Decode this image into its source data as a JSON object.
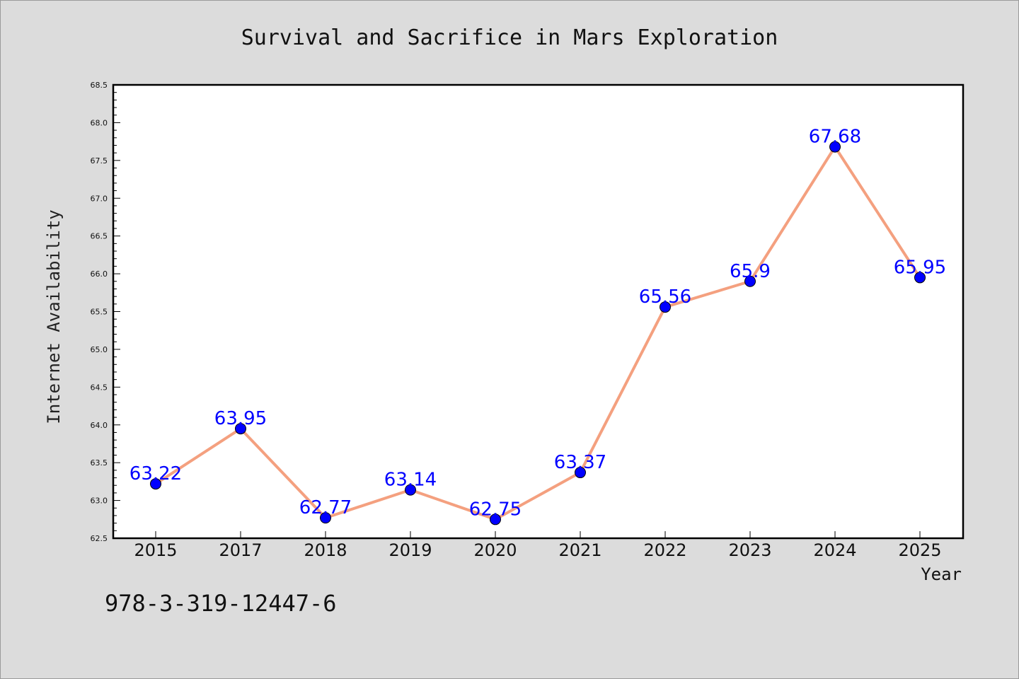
{
  "colors": {
    "background": "#dcdcdc",
    "plot_background": "#ffffff",
    "line": "#f4a07f",
    "marker": "#0000ff",
    "data_label": "#0000ff"
  },
  "footer": {
    "isbn": "978-3-319-12447-6"
  },
  "chart_data": {
    "type": "line",
    "title": "Survival and Sacrifice in Mars Exploration",
    "xlabel": "Year",
    "ylabel": "Internet Availability",
    "categories": [
      "2015",
      "2017",
      "2018",
      "2019",
      "2020",
      "2021",
      "2022",
      "2023",
      "2024",
      "2025"
    ],
    "series": [
      {
        "values": [
          63.22,
          63.95,
          62.77,
          63.14,
          62.75,
          63.37,
          65.56,
          65.9,
          67.68,
          65.95
        ],
        "labels": [
          "63.22",
          "63.95",
          "62.77",
          "63.14",
          "62.75",
          "63.37",
          "65.56",
          "65.9",
          "67.68",
          "65.95"
        ]
      }
    ],
    "ylim": [
      62.5,
      68.5
    ],
    "yticks": [
      "62.5",
      "63.0",
      "63.5",
      "64.0",
      "64.5",
      "65.0",
      "65.5",
      "66.0",
      "66.5",
      "67.0",
      "67.5",
      "68.0",
      "68.5"
    ],
    "ytick_step": 0.5,
    "grid": false,
    "legend": "none"
  }
}
